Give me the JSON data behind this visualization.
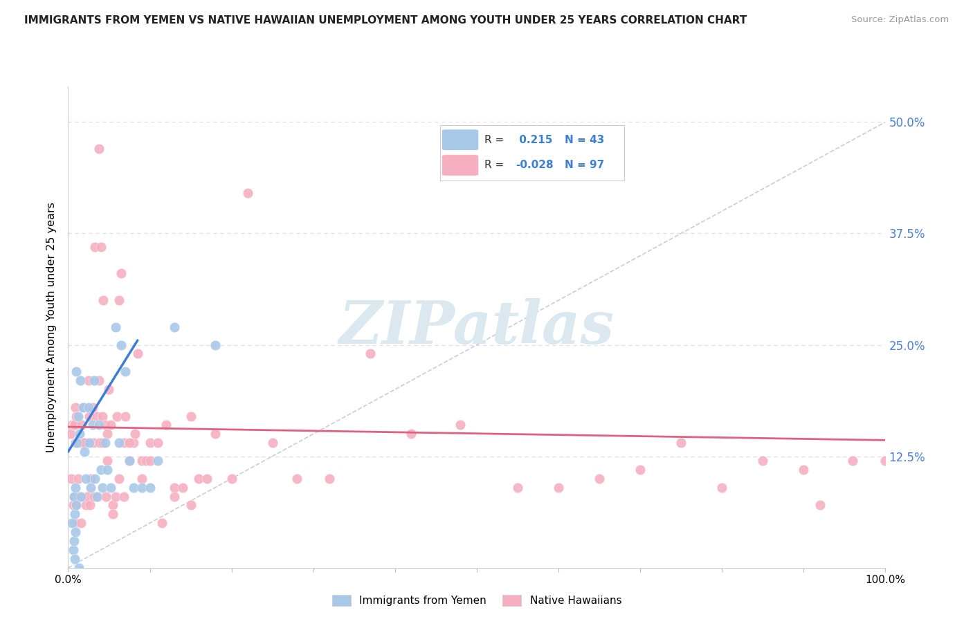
{
  "title": "IMMIGRANTS FROM YEMEN VS NATIVE HAWAIIAN UNEMPLOYMENT AMONG YOUTH UNDER 25 YEARS CORRELATION CHART",
  "source": "Source: ZipAtlas.com",
  "ylabel": "Unemployment Among Youth under 25 years",
  "xlim": [
    0.0,
    1.0
  ],
  "ylim": [
    0.0,
    0.54
  ],
  "x_ticks": [
    0.0,
    0.1,
    0.2,
    0.3,
    0.4,
    0.5,
    0.6,
    0.7,
    0.8,
    0.9,
    1.0
  ],
  "y_ticks": [
    0.0,
    0.125,
    0.25,
    0.375,
    0.5
  ],
  "y_tick_labels_right": [
    "",
    "12.5%",
    "25.0%",
    "37.5%",
    "50.0%"
  ],
  "legend_r_blue": " 0.215",
  "legend_n_blue": "43",
  "legend_r_pink": "-0.028",
  "legend_n_pink": "97",
  "blue_color": "#a8c8e8",
  "pink_color": "#f5afc0",
  "trend_blue_color": "#3a7fd5",
  "trend_pink_color": "#e06080",
  "dashed_line_color": "#c0c8d8",
  "watermark_text": "ZIPatlas",
  "watermark_color": "#dce8f0",
  "grid_color": "#d8dde8",
  "blue_x": [
    0.005,
    0.006,
    0.007,
    0.007,
    0.008,
    0.008,
    0.009,
    0.009,
    0.01,
    0.01,
    0.011,
    0.012,
    0.013,
    0.014,
    0.015,
    0.016,
    0.018,
    0.02,
    0.022,
    0.025,
    0.026,
    0.028,
    0.03,
    0.032,
    0.033,
    0.035,
    0.038,
    0.04,
    0.042,
    0.045,
    0.048,
    0.052,
    0.058,
    0.062,
    0.065,
    0.07,
    0.075,
    0.08,
    0.09,
    0.1,
    0.11,
    0.13,
    0.18
  ],
  "blue_y": [
    0.05,
    0.02,
    0.08,
    0.03,
    0.06,
    0.01,
    0.09,
    0.04,
    0.22,
    0.07,
    0.14,
    0.17,
    0.0,
    0.15,
    0.21,
    0.08,
    0.18,
    0.13,
    0.1,
    0.18,
    0.14,
    0.09,
    0.16,
    0.21,
    0.1,
    0.08,
    0.16,
    0.11,
    0.09,
    0.14,
    0.11,
    0.09,
    0.27,
    0.14,
    0.25,
    0.22,
    0.12,
    0.09,
    0.09,
    0.09,
    0.12,
    0.27,
    0.25
  ],
  "pink_x": [
    0.003,
    0.004,
    0.005,
    0.006,
    0.007,
    0.007,
    0.008,
    0.008,
    0.009,
    0.009,
    0.01,
    0.01,
    0.011,
    0.012,
    0.013,
    0.014,
    0.015,
    0.016,
    0.017,
    0.018,
    0.019,
    0.02,
    0.022,
    0.023,
    0.025,
    0.026,
    0.027,
    0.028,
    0.03,
    0.031,
    0.032,
    0.033,
    0.035,
    0.036,
    0.038,
    0.039,
    0.04,
    0.042,
    0.043,
    0.045,
    0.046,
    0.048,
    0.05,
    0.052,
    0.055,
    0.058,
    0.06,
    0.062,
    0.065,
    0.068,
    0.07,
    0.075,
    0.08,
    0.085,
    0.09,
    0.095,
    0.1,
    0.11,
    0.12,
    0.13,
    0.14,
    0.15,
    0.16,
    0.17,
    0.18,
    0.2,
    0.22,
    0.25,
    0.28,
    0.32,
    0.37,
    0.42,
    0.48,
    0.55,
    0.6,
    0.65,
    0.7,
    0.75,
    0.8,
    0.85,
    0.9,
    0.92,
    0.96,
    1.0,
    0.038,
    0.042,
    0.048,
    0.055,
    0.062,
    0.068,
    0.075,
    0.082,
    0.09,
    0.1,
    0.115,
    0.13,
    0.15
  ],
  "pink_y": [
    0.15,
    0.1,
    0.16,
    0.07,
    0.16,
    0.08,
    0.16,
    0.05,
    0.18,
    0.14,
    0.17,
    0.07,
    0.14,
    0.1,
    0.08,
    0.08,
    0.14,
    0.05,
    0.16,
    0.14,
    0.18,
    0.14,
    0.07,
    0.08,
    0.21,
    0.17,
    0.07,
    0.1,
    0.18,
    0.14,
    0.08,
    0.36,
    0.17,
    0.08,
    0.21,
    0.14,
    0.36,
    0.17,
    0.3,
    0.16,
    0.08,
    0.15,
    0.2,
    0.16,
    0.07,
    0.08,
    0.17,
    0.3,
    0.33,
    0.14,
    0.17,
    0.12,
    0.14,
    0.24,
    0.12,
    0.12,
    0.14,
    0.14,
    0.16,
    0.09,
    0.09,
    0.17,
    0.1,
    0.1,
    0.15,
    0.1,
    0.42,
    0.14,
    0.1,
    0.1,
    0.24,
    0.15,
    0.16,
    0.09,
    0.09,
    0.1,
    0.11,
    0.14,
    0.09,
    0.12,
    0.11,
    0.07,
    0.12,
    0.12,
    0.47,
    0.14,
    0.12,
    0.06,
    0.1,
    0.08,
    0.14,
    0.15,
    0.1,
    0.12,
    0.05,
    0.08,
    0.07
  ],
  "blue_trend_x0": 0.0,
  "blue_trend_y0": 0.13,
  "blue_trend_x1": 0.085,
  "blue_trend_y1": 0.255,
  "pink_trend_x0": 0.0,
  "pink_trend_y0": 0.158,
  "pink_trend_x1": 1.0,
  "pink_trend_y1": 0.143
}
